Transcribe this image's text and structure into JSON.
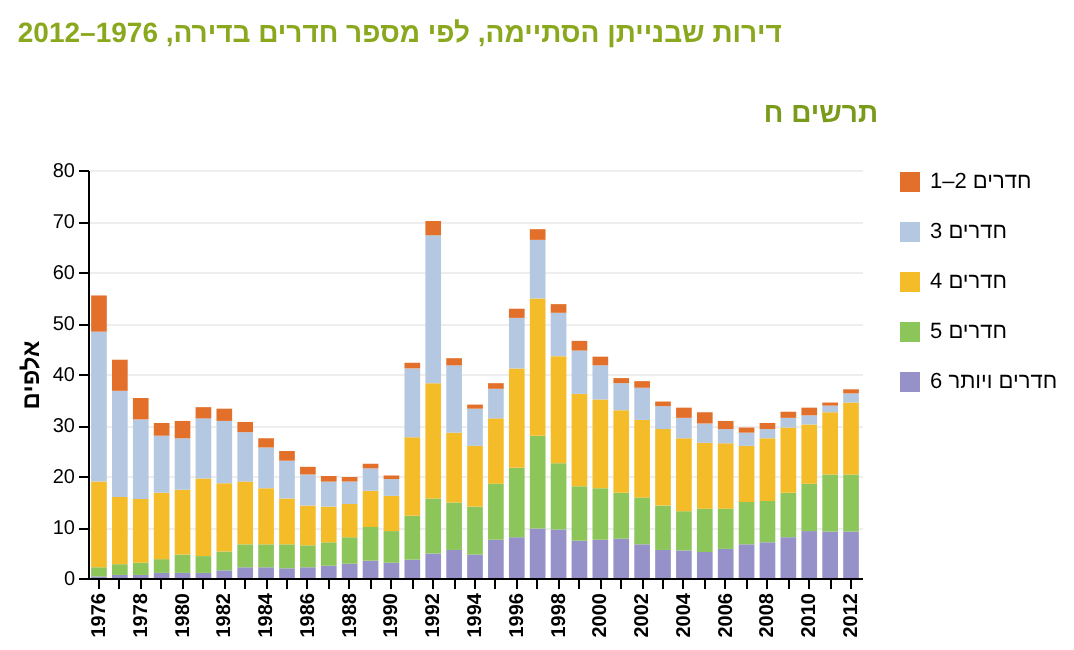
{
  "chart_data": {
    "type": "bar",
    "title": "דירות שבנייתן הסתיימה, לפי מספר חדרים בדירה, 1976–2012",
    "ylabel": "אלפים",
    "annotations": [
      "תרשים ח"
    ],
    "categories": [
      "1976",
      null,
      "1978",
      null,
      "1980",
      null,
      "1982",
      null,
      "1984",
      null,
      "1986",
      null,
      "1988",
      null,
      "1990",
      null,
      "1992",
      null,
      "1994",
      null,
      "1996",
      null,
      "1998",
      null,
      "2000",
      null,
      "2002",
      null,
      "2004",
      null,
      "2006",
      null,
      "2008",
      null,
      "2010",
      null,
      "2012"
    ],
    "stacked": true,
    "ylim": [
      0,
      80
    ],
    "yticks": [
      0,
      10,
      20,
      30,
      40,
      50,
      60,
      70,
      80
    ],
    "grid": "y",
    "legend": "right",
    "series": [
      {
        "name": "6 חדרים ויותר",
        "color": "#9691c8",
        "values": [
          0.3,
          0.6,
          0.6,
          1.0,
          1.0,
          1.0,
          1.5,
          2.1,
          2.1,
          1.9,
          2.1,
          2.4,
          2.8,
          3.4,
          3.0,
          3.6,
          4.8,
          5.5,
          4.6,
          7.5,
          8.0,
          9.7,
          9.5,
          7.3,
          7.5,
          7.7,
          6.6,
          5.5,
          5.4,
          5.1,
          5.7,
          6.6,
          7.0,
          8.0,
          9.2,
          9.1,
          9.1
        ]
      },
      {
        "name": "5 חדרים",
        "color": "#8cc55a",
        "values": [
          1.8,
          2.1,
          2.4,
          2.7,
          3.6,
          3.3,
          3.7,
          4.5,
          4.5,
          4.7,
          4.3,
          4.6,
          5.2,
          6.6,
          6.2,
          8.6,
          10.8,
          9.3,
          9.4,
          11.0,
          13.6,
          18.2,
          13.0,
          10.7,
          10.1,
          9.0,
          9.2,
          8.7,
          7.7,
          8.5,
          7.9,
          8.3,
          8.1,
          8.7,
          9.3,
          11.2,
          11.2
        ]
      },
      {
        "name": "4 חדרים",
        "color": "#f5bc2a",
        "values": [
          16.8,
          13.2,
          12.5,
          13.0,
          12.7,
          15.2,
          13.4,
          12.3,
          11.0,
          9.0,
          7.8,
          7.0,
          6.5,
          7.1,
          6.9,
          15.4,
          22.6,
          13.7,
          11.9,
          12.8,
          19.5,
          26.9,
          21.0,
          18.1,
          17.4,
          16.2,
          15.2,
          15.0,
          14.3,
          12.9,
          12.8,
          11.0,
          12.3,
          12.8,
          11.6,
          12.2,
          14.1
        ]
      },
      {
        "name": "3 חדרים",
        "color": "#b4c8e2",
        "values": [
          29.4,
          20.8,
          15.6,
          11.2,
          10.1,
          11.8,
          12.2,
          9.7,
          8.0,
          7.4,
          6.1,
          4.9,
          4.4,
          4.4,
          3.3,
          13.5,
          29.0,
          13.2,
          7.3,
          5.8,
          9.9,
          11.5,
          8.5,
          8.5,
          6.7,
          5.3,
          6.3,
          4.5,
          4.0,
          3.8,
          2.8,
          2.6,
          1.8,
          1.9,
          1.8,
          1.3,
          1.8
        ]
      },
      {
        "name": "1–2 חדרים",
        "color": "#e2702a",
        "values": [
          7.1,
          6.1,
          4.2,
          2.5,
          3.4,
          2.2,
          2.4,
          2.0,
          1.8,
          1.9,
          1.5,
          1.1,
          0.9,
          0.9,
          0.7,
          1.1,
          2.8,
          1.4,
          0.8,
          1.1,
          1.8,
          2.1,
          1.7,
          1.9,
          1.7,
          1.0,
          1.3,
          0.9,
          2.0,
          2.2,
          1.6,
          1.0,
          1.2,
          1.2,
          1.5,
          0.6,
          0.8
        ]
      }
    ]
  }
}
